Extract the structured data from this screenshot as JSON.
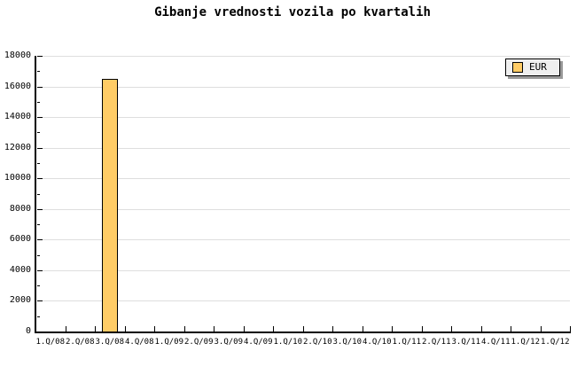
{
  "chart_data": {
    "type": "bar",
    "title": "Gibanje vrednosti vozila po kvartalih",
    "categories": [
      "1.Q/08",
      "2.Q/08",
      "3.Q/08",
      "4.Q/08",
      "1.Q/09",
      "2.Q/09",
      "3.Q/09",
      "4.Q/09",
      "1.Q/10",
      "2.Q/10",
      "3.Q/10",
      "4.Q/10",
      "1.Q/11",
      "2.Q/11",
      "3.Q/11",
      "4.Q/11",
      "1.Q/12",
      "1.Q/12"
    ],
    "series": [
      {
        "name": "EUR",
        "values": [
          null,
          null,
          16500,
          null,
          null,
          null,
          null,
          null,
          null,
          null,
          null,
          null,
          null,
          null,
          null,
          null,
          null,
          null
        ]
      }
    ],
    "xlabel": "",
    "ylabel": "",
    "ylim": [
      0,
      18000
    ],
    "ytick_step": 2000,
    "ytick_minor_step": 1000,
    "ytick_labels": [
      "0",
      "2000",
      "4000",
      "6000",
      "8000",
      "10000",
      "12000",
      "14000",
      "16000",
      "18000"
    ],
    "grid": "horizontal-only",
    "legend_position": "top-right",
    "colors": {
      "background": "#FFFFFF",
      "bar_fill": "#FFCC66",
      "bar_border": "#000000",
      "gridline": "#DEDEDE",
      "axis": "#000000",
      "text": "#000000",
      "legend_bg": "#EFEFEF",
      "legend_shadow": "#999999"
    }
  }
}
